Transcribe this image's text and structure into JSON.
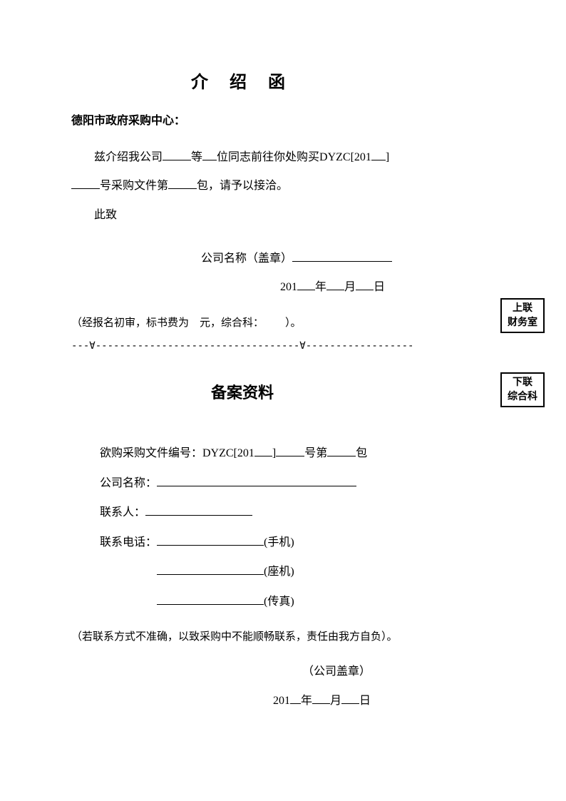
{
  "section1": {
    "title": "介 绍 函",
    "addressee": "德阳市政府采购中心：",
    "body_prefix": "兹介绍我公司",
    "body_mid1": "等",
    "body_mid2": "位同志前往你处购买DYZC[201",
    "body_mid3": "]",
    "body_mid4": "号采购文件第",
    "body_suffix": "包，请予以接洽。",
    "closing": "此致",
    "sig_label": "公司名称（盖章）",
    "date_201": "201",
    "date_year": "年",
    "date_month": "月",
    "date_day": "日",
    "audit_prefix": "（经报名初审，标书费为",
    "audit_mid": "元，综合科：",
    "audit_suffix": "）。"
  },
  "divider": "---∀----------------------------------∀-----------------------------",
  "section2": {
    "title": "备案资料",
    "file_no_label": "欲购采购文件编号：DYZC[201",
    "file_no_mid1": "]",
    "file_no_mid2": "号第",
    "file_no_suffix": "包",
    "company_label": "公司名称：",
    "contact_label": "联系人：",
    "phone_label": "联系电话：",
    "mobile": "(手机)",
    "landline": "(座机)",
    "fax": "(传真)",
    "disclaimer": "（若联系方式不准确，以致采购中不能顺畅联系，责任由我方自负）。",
    "seal": "（公司盖章）",
    "date_201": "201",
    "date_year": "年",
    "date_month": "月",
    "date_day": "日"
  },
  "sideboxes": {
    "box1_line1": "上联",
    "box1_line2": "财务室",
    "box2_line1": "下联",
    "box2_line2": "综合科"
  }
}
